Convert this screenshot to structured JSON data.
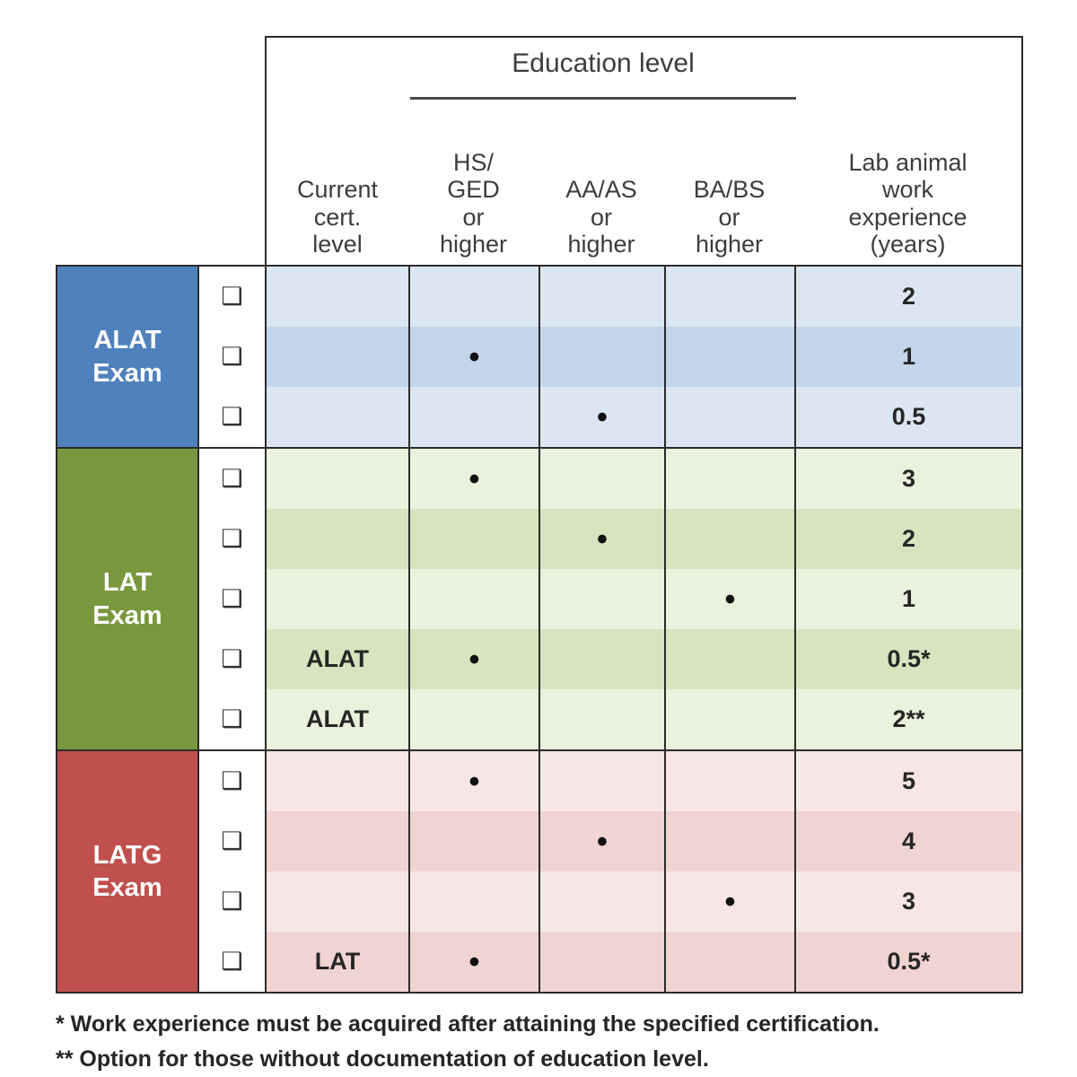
{
  "table": {
    "education_header": "Education level",
    "column_headers": {
      "current_cert": "Current\ncert.\nlevel",
      "hs_ged": "HS/\nGED\nor\nhigher",
      "aa_as": "AA/AS\nor\nhigher",
      "ba_bs": "BA/BS\nor\nhigher",
      "experience": "Lab animal\nwork\nexperience\n(years)"
    },
    "checkbox_glyph": "❑",
    "dot_glyph": "•",
    "groups": [
      {
        "label": "ALAT\nExam",
        "header_color": "#4f81bd",
        "stripe_light": "#dce6f2",
        "stripe_dark": "#c3d5ea",
        "rows": [
          {
            "current_cert": "",
            "dot": null,
            "experience_years": "2"
          },
          {
            "current_cert": "",
            "dot": "hs_ged",
            "experience_years": "1"
          },
          {
            "current_cert": "",
            "dot": "aa_as",
            "experience_years": "0.5"
          }
        ]
      },
      {
        "label": "LAT\nExam",
        "header_color": "#79983e",
        "stripe_light": "#eaf1dc",
        "stripe_dark": "#d8e4c0",
        "rows": [
          {
            "current_cert": "",
            "dot": "hs_ged",
            "experience_years": "3"
          },
          {
            "current_cert": "",
            "dot": "aa_as",
            "experience_years": "2"
          },
          {
            "current_cert": "",
            "dot": "ba_bs",
            "experience_years": "1"
          },
          {
            "current_cert": "ALAT",
            "dot": "hs_ged",
            "experience_years": "0.5*"
          },
          {
            "current_cert": "ALAT",
            "dot": null,
            "experience_years": "2**"
          }
        ]
      },
      {
        "label": "LATG\nExam",
        "header_color": "#c0504d",
        "stripe_light": "#f7e6e5",
        "stripe_dark": "#f0d4d2",
        "rows": [
          {
            "current_cert": "",
            "dot": "hs_ged",
            "experience_years": "5"
          },
          {
            "current_cert": "",
            "dot": "aa_as",
            "experience_years": "4"
          },
          {
            "current_cert": "",
            "dot": "ba_bs",
            "experience_years": "3"
          },
          {
            "current_cert": "LAT",
            "dot": "hs_ged",
            "experience_years": "0.5*"
          }
        ]
      }
    ]
  },
  "footnotes": [
    "* Work experience must be acquired after attaining the specified certification.",
    "** Option for those without documentation of education level."
  ]
}
